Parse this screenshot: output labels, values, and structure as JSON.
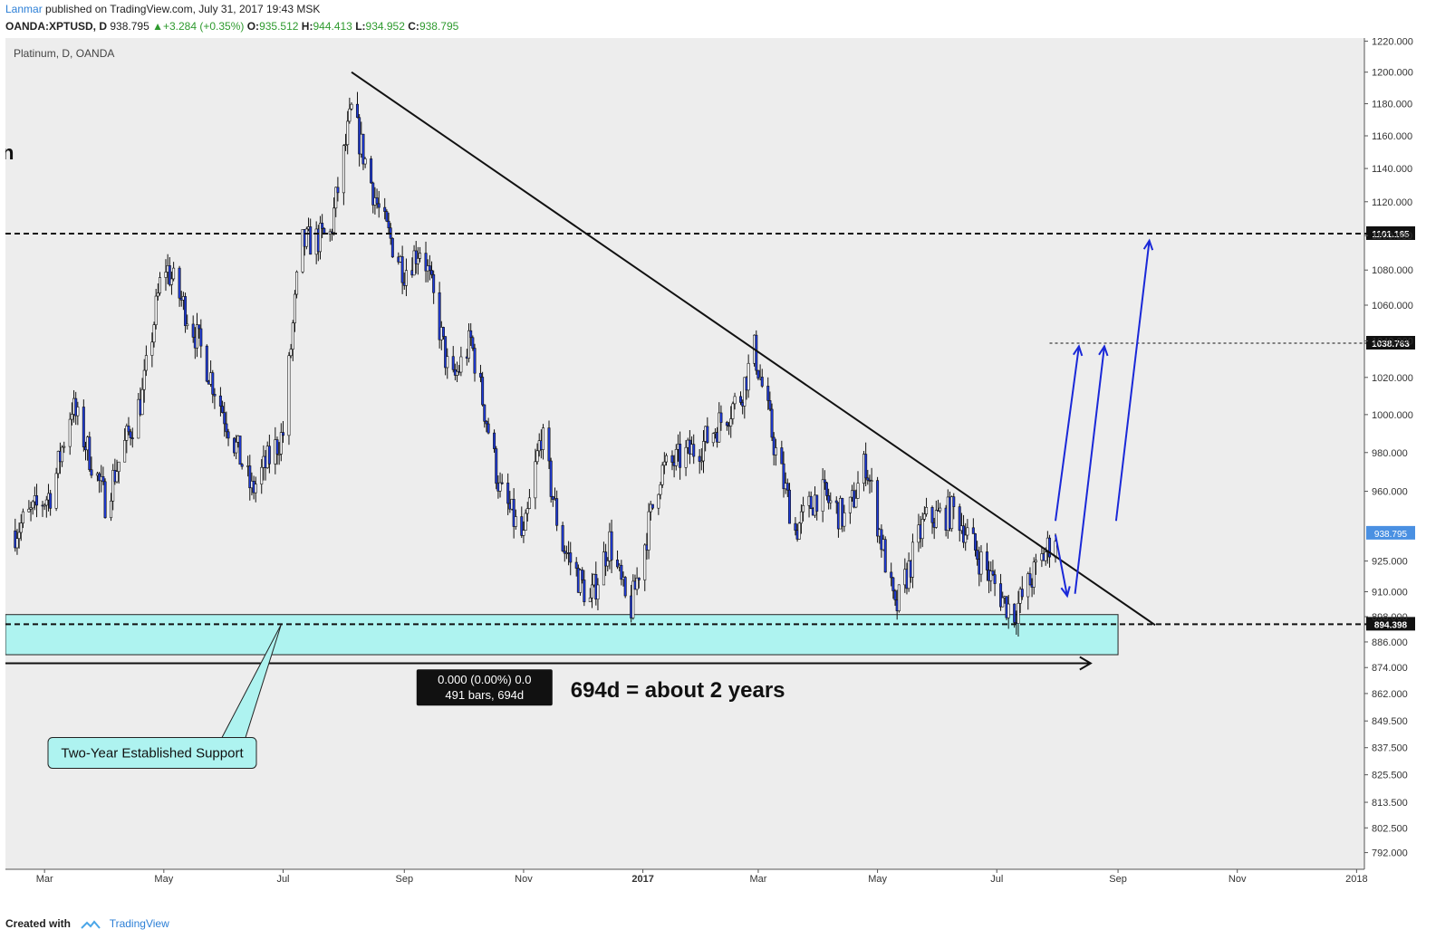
{
  "header": {
    "author": "Lanmar",
    "published_text": "published on TradingView.com, July 31, 2017 19:43 MSK",
    "symbol": "OANDA:XPTUSD, D",
    "last": "938.795",
    "change": "▲+3.284 (+0.35%)",
    "o_label": "O:",
    "o_value": "935.512",
    "h_label": "H:",
    "h_value": "944.413",
    "l_label": "L:",
    "l_value": "934.952",
    "c_label": "C:",
    "c_value": "938.795"
  },
  "chart_title": "Platinum, D, OANDA",
  "colors": {
    "background": "#ededed",
    "candle": "#1f3bd9",
    "support_zone": "#aef3f0",
    "trendline": "#111111",
    "arrow": "#1a28d8",
    "price_badge": "#4a90e2"
  },
  "measure_box": {
    "line1": "0.000 (0.00%) 0.0",
    "line2": "491 bars, 694d"
  },
  "annotation_main": "694d = about 2 years",
  "callout": "Two-Year Established Support",
  "stray_mark": "n",
  "chart_data": {
    "type": "candlestick",
    "title": "Platinum, D, OANDA",
    "y_scale": "log",
    "ylim": [
      785,
      1222
    ],
    "y_ticks": [
      "1220.000",
      "1200.000",
      "1180.000",
      "1160.000",
      "1140.000",
      "1120.000",
      "1100.000",
      "1080.000",
      "1060.000",
      "1040.000",
      "1020.000",
      "1000.000",
      "980.000",
      "960.000",
      "938.795",
      "925.000",
      "910.000",
      "898.000",
      "886.000",
      "874.000",
      "862.000",
      "849.500",
      "837.500",
      "825.500",
      "813.500",
      "802.500",
      "792.000"
    ],
    "x_ticks": [
      "Mar",
      "May",
      "Jul",
      "Sep",
      "Nov",
      "2017",
      "Mar",
      "May",
      "Jul",
      "Sep",
      "Nov",
      "2018"
    ],
    "horizontal_levels": [
      {
        "value": 1101.165,
        "label": "1101.165",
        "style": "dashed"
      },
      {
        "value": 1038.763,
        "label": "1038.763",
        "style": "dotted"
      },
      {
        "value": 894.398,
        "label": "894.398",
        "style": "dashed"
      }
    ],
    "current_price": {
      "value": 938.795,
      "label": "938.795"
    },
    "support_zone": {
      "low": 880,
      "high": 899
    },
    "trendline": [
      {
        "date": "2016-08-05",
        "price": 1200
      },
      {
        "date": "2017-09-20",
        "price": 894
      }
    ],
    "measure_span_days": 694,
    "measure_bars": 491,
    "price_path": [
      {
        "date": "2016-02-15",
        "price": 940
      },
      {
        "date": "2016-03-05",
        "price": 960
      },
      {
        "date": "2016-03-15",
        "price": 1005
      },
      {
        "date": "2016-04-01",
        "price": 955
      },
      {
        "date": "2016-04-20",
        "price": 1010
      },
      {
        "date": "2016-05-01",
        "price": 1085
      },
      {
        "date": "2016-05-15",
        "price": 1050
      },
      {
        "date": "2016-06-01",
        "price": 1000
      },
      {
        "date": "2016-06-15",
        "price": 960
      },
      {
        "date": "2016-07-01",
        "price": 990
      },
      {
        "date": "2016-07-10",
        "price": 1095
      },
      {
        "date": "2016-07-25",
        "price": 1100
      },
      {
        "date": "2016-08-05",
        "price": 1175
      },
      {
        "date": "2016-08-20",
        "price": 1110
      },
      {
        "date": "2016-09-01",
        "price": 1080
      },
      {
        "date": "2016-09-10",
        "price": 1095
      },
      {
        "date": "2016-09-25",
        "price": 1015
      },
      {
        "date": "2016-10-05",
        "price": 1040
      },
      {
        "date": "2016-10-20",
        "price": 960
      },
      {
        "date": "2016-11-01",
        "price": 935
      },
      {
        "date": "2016-11-10",
        "price": 990
      },
      {
        "date": "2016-11-20",
        "price": 935
      },
      {
        "date": "2016-12-05",
        "price": 905
      },
      {
        "date": "2016-12-15",
        "price": 935
      },
      {
        "date": "2016-12-25",
        "price": 898
      },
      {
        "date": "2017-01-10",
        "price": 970
      },
      {
        "date": "2017-02-01",
        "price": 985
      },
      {
        "date": "2017-02-20",
        "price": 1010
      },
      {
        "date": "2017-02-27",
        "price": 1035
      },
      {
        "date": "2017-03-10",
        "price": 980
      },
      {
        "date": "2017-03-20",
        "price": 940
      },
      {
        "date": "2017-04-01",
        "price": 960
      },
      {
        "date": "2017-04-15",
        "price": 945
      },
      {
        "date": "2017-04-25",
        "price": 975
      },
      {
        "date": "2017-05-05",
        "price": 925
      },
      {
        "date": "2017-05-10",
        "price": 900
      },
      {
        "date": "2017-05-25",
        "price": 945
      },
      {
        "date": "2017-06-10",
        "price": 950
      },
      {
        "date": "2017-06-20",
        "price": 930
      },
      {
        "date": "2017-07-05",
        "price": 905
      },
      {
        "date": "2017-07-10",
        "price": 900
      },
      {
        "date": "2017-07-31",
        "price": 938.795
      }
    ]
  }
}
